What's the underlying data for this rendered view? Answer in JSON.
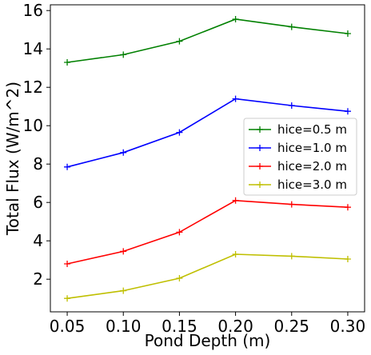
{
  "chart_data": {
    "type": "line",
    "xlabel": "Pond Depth (m)",
    "ylabel": "Total Flux (W/m^2)",
    "x": [
      0.05,
      0.1,
      0.15,
      0.2,
      0.25,
      0.3
    ],
    "x_tick_labels": [
      "0.05",
      "0.10",
      "0.15",
      "0.20",
      "0.25",
      "0.30"
    ],
    "y_ticks": [
      2,
      4,
      6,
      8,
      10,
      12,
      14,
      16
    ],
    "xlim": [
      0.035,
      0.315
    ],
    "ylim": [
      0.3,
      16.3
    ],
    "grid": false,
    "legend_position": "center-right",
    "marker": "plus",
    "series": [
      {
        "name": "hice=0.5 m",
        "color": "#008000",
        "values": [
          13.3,
          13.7,
          14.4,
          15.55,
          15.15,
          14.8
        ]
      },
      {
        "name": "hice=1.0 m",
        "color": "#0000ff",
        "values": [
          7.85,
          8.6,
          9.65,
          11.4,
          11.05,
          10.75
        ]
      },
      {
        "name": "hice=2.0 m",
        "color": "#ff0000",
        "values": [
          2.8,
          3.45,
          4.45,
          6.1,
          5.9,
          5.75
        ]
      },
      {
        "name": "hice=3.0 m",
        "color": "#bfbf00",
        "values": [
          1.0,
          1.4,
          2.05,
          3.3,
          3.2,
          3.05
        ]
      }
    ]
  }
}
